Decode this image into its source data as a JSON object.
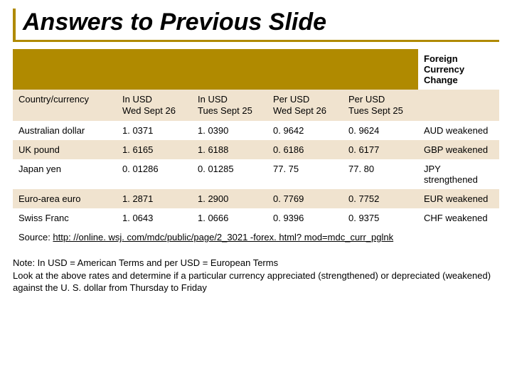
{
  "title": "Answers to Previous Slide",
  "header_last": "Foreign Currency Change",
  "columns": {
    "c0": "Country/currency",
    "c1": "In USD\nWed Sept 26",
    "c2": "In USD\nTues Sept 25",
    "c3": "Per USD\nWed  Sept 26",
    "c4": "Per USD\nTues Sept 25",
    "c5": ""
  },
  "rows": [
    {
      "c0": "Australian dollar",
      "c1": "1. 0371",
      "c2": "1. 0390",
      "c3": "0. 9642",
      "c4": "0. 9624",
      "c5": "AUD weakened"
    },
    {
      "c0": "UK pound",
      "c1": "1. 6165",
      "c2": "1. 6188",
      "c3": "0. 6186",
      "c4": "0. 6177",
      "c5": "GBP weakened"
    },
    {
      "c0": "Japan yen",
      "c1": "0. 01286",
      "c2": "0. 01285",
      "c3": "77. 75",
      "c4": "77. 80",
      "c5": "JPY strengthened"
    },
    {
      "c0": "Euro-area euro",
      "c1": "1. 2871",
      "c2": "1. 2900",
      "c3": "0. 7769",
      "c4": "0. 7752",
      "c5": "EUR weakened"
    },
    {
      "c0": "Swiss Franc",
      "c1": "1. 0643",
      "c2": "1. 0666",
      "c3": "0. 9396",
      "c4": "0. 9375",
      "c5": "CHF weakened"
    }
  ],
  "source_label": "Source: ",
  "source_link": "http: //online. wsj. com/mdc/public/page/2_3021 -forex. html? mod=mdc_curr_pglnk",
  "note": "Note: In USD = American Terms and  per USD = European Terms\nLook at the above rates and determine if a particular currency appreciated (strengthened) or depreciated (weakened) against the U. S. dollar from Thursday to Friday"
}
